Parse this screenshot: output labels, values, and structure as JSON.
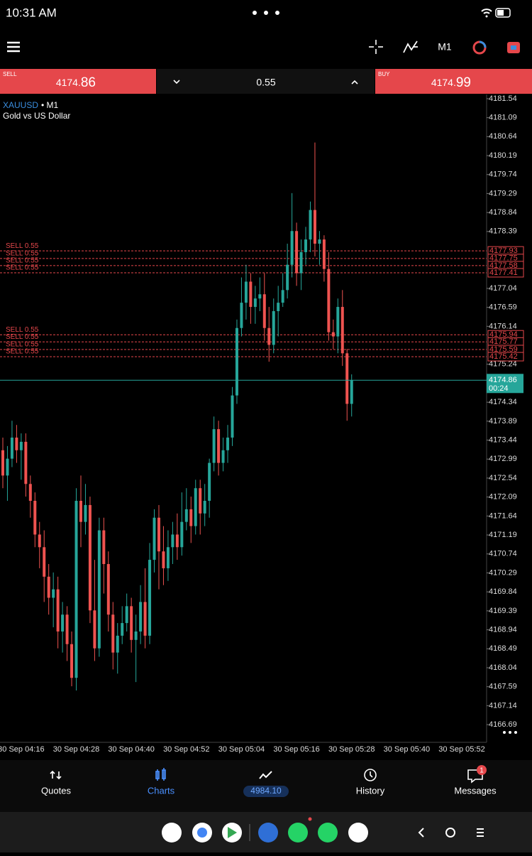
{
  "status_bar": {
    "time": "10:31 AM"
  },
  "toolbar": {
    "timeframe": "M1"
  },
  "trade_panel": {
    "sell": {
      "label": "SELL",
      "price_main": "4174.",
      "price_big": "86"
    },
    "volume": "0.55",
    "buy": {
      "label": "BUY",
      "price_main": "4174.",
      "price_big": "99"
    }
  },
  "chart_data": {
    "type": "candlestick",
    "symbol": "XAUUSD",
    "timeframe": "• M1",
    "description": "Gold vs US Dollar",
    "up_color": "#26a69a",
    "down_color": "#ef5350",
    "open": [
      4173.2,
      4172.6,
      4173.0,
      4173.5,
      4173.2,
      4173.4,
      4172.4,
      4172.0,
      4171.2,
      4170.9,
      4170.2,
      4169.7,
      4169.9,
      4168.9,
      4169.3,
      4168.6,
      4167.8,
      4172.0,
      4171.5,
      4171.9,
      4169.4,
      4168.5,
      4171.3,
      4170.5,
      4169.3,
      4168.4,
      4168.8,
      4169.1,
      4169.5,
      4168.7,
      4168.9,
      4169.6,
      4168.8,
      4170.6,
      4171.6,
      4170.8,
      4170.4,
      4170.9,
      4171.2,
      4170.9,
      4171.5,
      4171.8,
      4171.4,
      4172.3,
      4171.7,
      4172.0,
      4172.9,
      4173.7,
      4172.9,
      4173.2,
      4173.5,
      4174.5,
      4176.1,
      4176.7,
      4177.2,
      4176.6,
      4176.8,
      4176.9,
      4176.1,
      4175.7,
      4176.5,
      4176.7,
      4177.0,
      4177.6,
      4178.4,
      4177.4,
      4177.9,
      4178.2,
      4178.9,
      4178.1,
      4178.2,
      4177.5,
      4176.0,
      4175.9,
      4176.6,
      4175.5,
      4174.3
    ],
    "high": [
      4173.5,
      4173.3,
      4173.9,
      4173.8,
      4173.6,
      4173.6,
      4172.6,
      4172.2,
      4171.5,
      4171.3,
      4170.5,
      4170.3,
      4170.2,
      4169.6,
      4169.5,
      4168.9,
      4172.3,
      4172.6,
      4172.4,
      4172.1,
      4170.6,
      4171.6,
      4171.6,
      4170.8,
      4169.6,
      4169.1,
      4169.5,
      4169.8,
      4169.7,
      4169.3,
      4170.0,
      4170.4,
      4171.0,
      4171.8,
      4171.9,
      4171.4,
      4171.3,
      4171.5,
      4171.7,
      4172.2,
      4172.3,
      4172.1,
      4172.5,
      4172.5,
      4172.4,
      4173.0,
      4174.0,
      4173.9,
      4173.5,
      4173.8,
      4174.7,
      4176.3,
      4177.3,
      4177.6,
      4177.4,
      4177.1,
      4177.3,
      4177.4,
      4176.6,
      4176.8,
      4177.1,
      4177.4,
      4178.1,
      4179.3,
      4178.6,
      4178.2,
      4178.5,
      4179.1,
      4180.5,
      4178.4,
      4178.3,
      4177.9,
      4176.3,
      4176.8,
      4177.0,
      4175.6,
      4175.0
    ],
    "low": [
      4172.3,
      4172.0,
      4172.8,
      4172.9,
      4172.5,
      4172.1,
      4171.6,
      4170.9,
      4170.4,
      4169.6,
      4169.3,
      4169.0,
      4168.5,
      4168.4,
      4168.2,
      4167.6,
      4167.5,
      4170.9,
      4171.2,
      4169.1,
      4168.2,
      4168.3,
      4169.8,
      4168.9,
      4168.0,
      4167.9,
      4168.6,
      4168.9,
      4168.4,
      4167.7,
      4168.6,
      4168.5,
      4168.6,
      4170.3,
      4169.9,
      4170.0,
      4170.1,
      4170.5,
      4170.6,
      4170.7,
      4171.3,
      4171.0,
      4171.2,
      4171.2,
      4171.4,
      4171.6,
      4172.7,
      4172.6,
      4172.7,
      4172.9,
      4173.3,
      4174.3,
      4175.9,
      4176.3,
      4176.2,
      4176.2,
      4176.5,
      4175.8,
      4175.3,
      4175.5,
      4175.9,
      4176.6,
      4176.8,
      4177.3,
      4177.1,
      4177.0,
      4177.6,
      4177.9,
      4177.8,
      4177.6,
      4177.2,
      4175.8,
      4175.6,
      4175.5,
      4175.2,
      4173.9,
      4174.0
    ],
    "close": [
      4172.6,
      4173.0,
      4173.5,
      4173.2,
      4173.4,
      4172.4,
      4172.0,
      4171.2,
      4170.9,
      4170.2,
      4169.7,
      4169.9,
      4168.9,
      4169.3,
      4168.6,
      4167.8,
      4172.0,
      4171.5,
      4171.9,
      4169.4,
      4168.5,
      4171.3,
      4170.5,
      4169.3,
      4168.4,
      4168.8,
      4169.1,
      4169.5,
      4168.7,
      4168.9,
      4169.6,
      4168.8,
      4170.6,
      4171.6,
      4170.8,
      4170.4,
      4170.9,
      4171.2,
      4170.9,
      4171.5,
      4171.8,
      4171.4,
      4172.3,
      4171.7,
      4172.0,
      4172.9,
      4173.7,
      4172.9,
      4173.2,
      4173.5,
      4174.5,
      4176.1,
      4176.7,
      4177.2,
      4176.6,
      4176.8,
      4176.9,
      4176.1,
      4175.7,
      4176.5,
      4176.7,
      4177.0,
      4177.6,
      4178.4,
      4177.4,
      4177.9,
      4178.2,
      4178.9,
      4178.1,
      4178.2,
      4177.5,
      4176.0,
      4175.9,
      4176.6,
      4175.5,
      4174.3,
      4174.86
    ],
    "ylim": [
      4166.27,
      4181.64
    ],
    "yticks": [
      4181.54,
      4181.09,
      4180.64,
      4180.19,
      4179.74,
      4179.29,
      4178.84,
      4178.39,
      4177.04,
      4176.59,
      4176.14,
      4175.24,
      4174.34,
      4173.89,
      4173.44,
      4172.99,
      4172.54,
      4172.09,
      4171.64,
      4171.19,
      4170.74,
      4170.29,
      4169.84,
      4169.39,
      4168.94,
      4168.49,
      4168.04,
      4167.59,
      4167.14,
      4166.69
    ],
    "xtick_labels": [
      "30 Sep 04:16",
      "30 Sep 04:28",
      "30 Sep 04:40",
      "30 Sep 04:52",
      "30 Sep 05:04",
      "30 Sep 05:16",
      "30 Sep 05:28",
      "30 Sep 05:40",
      "30 Sep 05:52"
    ],
    "current_price": 4174.86,
    "countdown": "00:24",
    "current_color": "#26a69a",
    "order_color": "#e5474b",
    "orders": [
      {
        "label": "SELL 0.55",
        "price": 4177.93
      },
      {
        "label": "SELL 0.55",
        "price": 4177.75
      },
      {
        "label": "SELL 0.55",
        "price": 4177.58
      },
      {
        "label": "SELL 0.55",
        "price": 4177.41
      },
      {
        "label": "SELL 0.55",
        "price": 4175.94
      },
      {
        "label": "SELL 0.55",
        "price": 4175.77
      },
      {
        "label": "SELL 0.55",
        "price": 4175.59
      },
      {
        "label": "SELL 0.55",
        "price": 4175.42
      }
    ]
  },
  "bottom_nav": {
    "items": [
      "Quotes",
      "Charts",
      "",
      "History",
      "Messages"
    ],
    "balance": "4984.10",
    "badge": "1"
  }
}
